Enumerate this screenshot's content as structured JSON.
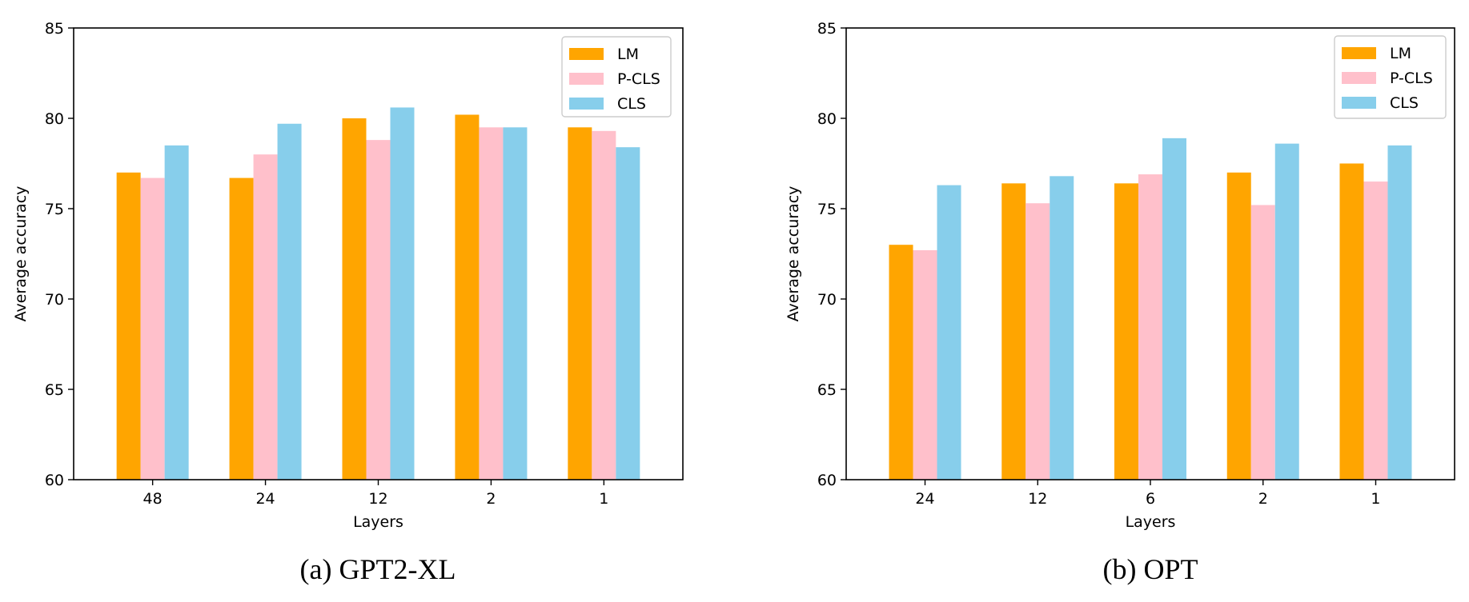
{
  "colors": {
    "LM": "#FFA500",
    "P-CLS": "#FFC0CB",
    "CLS": "#87CEEB",
    "axis": "#000000",
    "legend_border": "#cccccc"
  },
  "chart_data": [
    {
      "type": "bar",
      "caption": "(a) GPT2-XL",
      "title": "",
      "xlabel": "Layers",
      "ylabel": "Average accuracy",
      "ylim": [
        60,
        85
      ],
      "yticks": [
        60,
        65,
        70,
        75,
        80,
        85
      ],
      "grid": false,
      "legend_position": "top-right",
      "categories": [
        "48",
        "24",
        "12",
        "2",
        "1"
      ],
      "series": [
        {
          "name": "LM",
          "values": [
            77.0,
            76.7,
            80.0,
            80.2,
            79.5
          ]
        },
        {
          "name": "P-CLS",
          "values": [
            76.7,
            78.0,
            78.8,
            79.5,
            79.3
          ]
        },
        {
          "name": "CLS",
          "values": [
            78.5,
            79.7,
            80.6,
            79.5,
            78.4
          ]
        }
      ]
    },
    {
      "type": "bar",
      "caption": "(b) OPT",
      "title": "",
      "xlabel": "Layers",
      "ylabel": "Average accuracy",
      "ylim": [
        60,
        85
      ],
      "yticks": [
        60,
        65,
        70,
        75,
        80,
        85
      ],
      "grid": false,
      "legend_position": "top-right",
      "categories": [
        "24",
        "12",
        "6",
        "2",
        "1"
      ],
      "series": [
        {
          "name": "LM",
          "values": [
            73.0,
            76.4,
            76.4,
            77.0,
            77.5
          ]
        },
        {
          "name": "P-CLS",
          "values": [
            72.7,
            75.3,
            76.9,
            75.2,
            76.5
          ]
        },
        {
          "name": "CLS",
          "values": [
            76.3,
            76.8,
            78.9,
            78.6,
            78.5
          ]
        }
      ]
    }
  ]
}
